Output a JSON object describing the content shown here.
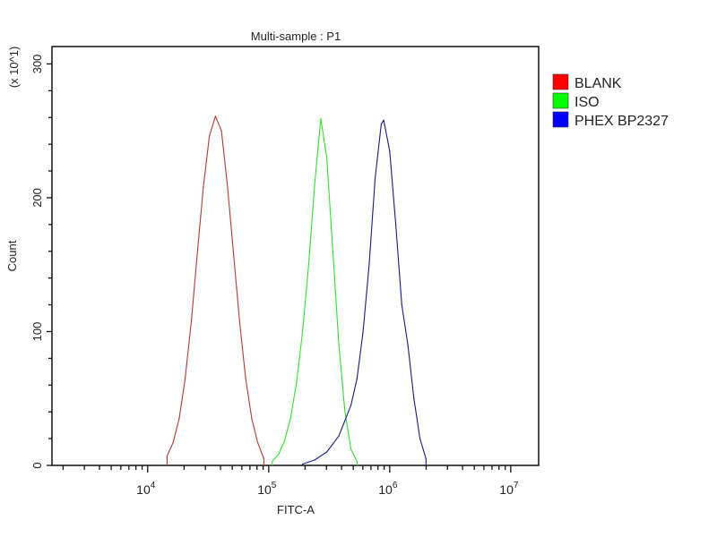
{
  "chart_data": {
    "type": "line",
    "title": "Multi-sample : P1",
    "xlabel": "FITC-A",
    "ylabel": "Count",
    "y_multiplier_label": "(x 10^1)",
    "x_scale": "log",
    "xlim": [
      1620,
      17000000
    ],
    "ylim": [
      0,
      313
    ],
    "x_ticks": [
      {
        "base": "10",
        "exp": "4",
        "value": 10000
      },
      {
        "base": "10",
        "exp": "5",
        "value": 100000
      },
      {
        "base": "10",
        "exp": "6",
        "value": 1000000
      },
      {
        "base": "10",
        "exp": "7",
        "value": 10000000
      }
    ],
    "y_ticks": [
      "0",
      "100",
      "200",
      "300"
    ],
    "grid": false,
    "legend_position": "right",
    "series": [
      {
        "name": "BLANK",
        "color": "#b03a3a",
        "legend_color": "#ff0000",
        "x": [
          14454,
          16218,
          18197,
          20417,
          22909,
          25704,
          28840,
          32359,
          36308,
          40738,
          45709,
          51286,
          57544,
          64565,
          72444,
          81283,
          91201
        ],
        "y": [
          7,
          17,
          35,
          65,
          107,
          158,
          208,
          246,
          261,
          250,
          208,
          158,
          107,
          65,
          35,
          17,
          5
        ]
      },
      {
        "name": "ISO",
        "color": "#33dd33",
        "legend_color": "#00ff00",
        "x": [
          107152,
          120226,
          134896,
          151356,
          169824,
          190546,
          213796,
          239883,
          269153,
          301995,
          338844,
          380189,
          426580,
          478630,
          537032
        ],
        "y": [
          3,
          8,
          18,
          35,
          62,
          100,
          150,
          210,
          259,
          230,
          160,
          90,
          40,
          12,
          3
        ]
      },
      {
        "name": "PHEX BP2327",
        "color": "#1a1a80",
        "legend_color": "#0000ff",
        "x": [
          190546,
          239883,
          301995,
          380189,
          478630,
          537032,
          602560,
          676083,
          758578,
          851138,
          891251,
          1000000,
          1122018,
          1258925,
          1412538,
          1584893,
          1778279,
          1995262
        ],
        "y": [
          1,
          4,
          10,
          22,
          45,
          65,
          100,
          150,
          215,
          255,
          258,
          235,
          180,
          120,
          90,
          50,
          20,
          5
        ]
      }
    ]
  }
}
